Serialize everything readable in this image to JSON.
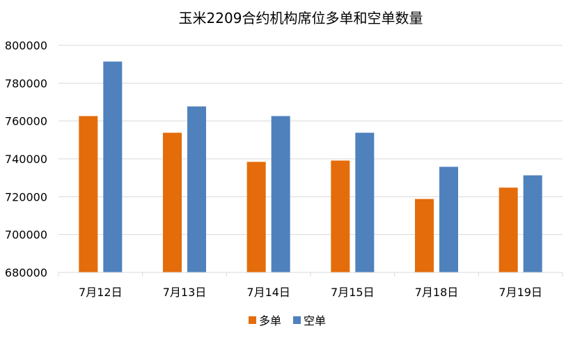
{
  "chart_data": {
    "type": "bar",
    "title": "玉米2209合约机构席位多单和空单数量",
    "xlabel": "",
    "ylabel": "",
    "categories": [
      "7月12日",
      "7月13日",
      "7月14日",
      "7月15日",
      "7月18日",
      "7月19日"
    ],
    "series": [
      {
        "name": "多单",
        "color": "#E46C0A",
        "values": [
          762600,
          753800,
          738400,
          739100,
          718800,
          724800
        ]
      },
      {
        "name": "空单",
        "color": "#4F81BD",
        "values": [
          791400,
          767700,
          762600,
          753800,
          735800,
          731300
        ]
      }
    ],
    "ylim": [
      680000,
      800000
    ],
    "yticks": [
      680000,
      700000,
      720000,
      740000,
      760000,
      780000,
      800000
    ],
    "ytick_labels": [
      "680000",
      "700000",
      "720000",
      "740000",
      "760000",
      "780000",
      "800000"
    ],
    "grid": true,
    "legend_position": "bottom"
  }
}
